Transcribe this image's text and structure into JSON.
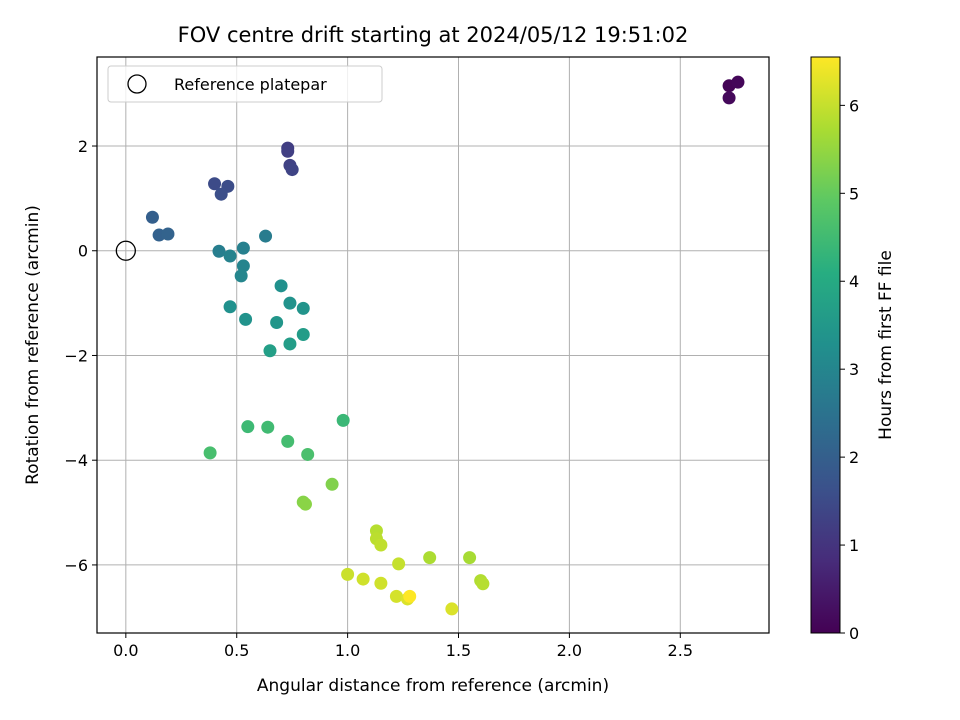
{
  "chart_data": {
    "type": "scatter",
    "title": "FOV centre drift starting at 2024/05/12 19:51:02",
    "xlabel": "Angular distance from reference (arcmin)",
    "ylabel": "Rotation from reference (arcmin)",
    "xlim": [
      -0.13,
      2.9
    ],
    "ylim": [
      -7.3,
      3.7
    ],
    "xticks": [
      0.0,
      0.5,
      1.0,
      1.5,
      2.0,
      2.5
    ],
    "xtick_labels": [
      "0.0",
      "0.5",
      "1.0",
      "1.5",
      "2.0",
      "2.5"
    ],
    "yticks": [
      2,
      0,
      -2,
      -4,
      -6
    ],
    "ytick_labels": [
      "2",
      "0",
      "−2",
      "−4",
      "−6"
    ],
    "grid": true,
    "legend": {
      "position": "top-left",
      "entries": [
        {
          "label": "Reference platepar",
          "marker": "open-circle",
          "x": 0.0,
          "y": 0.0
        }
      ]
    },
    "colorbar": {
      "label": "Hours from first FF file",
      "colormap": "viridis",
      "range": [
        0,
        6.55
      ],
      "ticks": [
        0,
        1,
        2,
        3,
        4,
        5,
        6
      ],
      "tick_labels": [
        "0",
        "1",
        "2",
        "3",
        "4",
        "5",
        "6"
      ]
    },
    "points": [
      {
        "x": 2.72,
        "y": 3.15,
        "hours": 0.05
      },
      {
        "x": 2.76,
        "y": 3.22,
        "hours": 0.1
      },
      {
        "x": 2.72,
        "y": 2.92,
        "hours": 0.15
      },
      {
        "x": 0.73,
        "y": 1.96,
        "hours": 1.2
      },
      {
        "x": 0.73,
        "y": 1.9,
        "hours": 1.25
      },
      {
        "x": 0.74,
        "y": 1.63,
        "hours": 1.3
      },
      {
        "x": 0.75,
        "y": 1.55,
        "hours": 1.35
      },
      {
        "x": 0.4,
        "y": 1.28,
        "hours": 1.5
      },
      {
        "x": 0.46,
        "y": 1.23,
        "hours": 1.55
      },
      {
        "x": 0.43,
        "y": 1.08,
        "hours": 1.6
      },
      {
        "x": 0.12,
        "y": 0.64,
        "hours": 2.0
      },
      {
        "x": 0.15,
        "y": 0.3,
        "hours": 2.05
      },
      {
        "x": 0.19,
        "y": 0.32,
        "hours": 2.1
      },
      {
        "x": 0.63,
        "y": 0.28,
        "hours": 2.75
      },
      {
        "x": 0.42,
        "y": -0.01,
        "hours": 2.8
      },
      {
        "x": 0.53,
        "y": 0.05,
        "hours": 2.85
      },
      {
        "x": 0.47,
        "y": -0.1,
        "hours": 2.9
      },
      {
        "x": 0.53,
        "y": -0.29,
        "hours": 2.95
      },
      {
        "x": 0.52,
        "y": -0.48,
        "hours": 3.0
      },
      {
        "x": 0.7,
        "y": -0.67,
        "hours": 3.3
      },
      {
        "x": 0.74,
        "y": -1.0,
        "hours": 3.35
      },
      {
        "x": 0.8,
        "y": -1.1,
        "hours": 3.4
      },
      {
        "x": 0.47,
        "y": -1.07,
        "hours": 3.3
      },
      {
        "x": 0.54,
        "y": -1.31,
        "hours": 3.35
      },
      {
        "x": 0.68,
        "y": -1.37,
        "hours": 3.45
      },
      {
        "x": 0.8,
        "y": -1.6,
        "hours": 3.6
      },
      {
        "x": 0.74,
        "y": -1.78,
        "hours": 3.65
      },
      {
        "x": 0.65,
        "y": -1.91,
        "hours": 3.7
      },
      {
        "x": 0.98,
        "y": -3.24,
        "hours": 4.4
      },
      {
        "x": 0.55,
        "y": -3.36,
        "hours": 4.45
      },
      {
        "x": 0.64,
        "y": -3.37,
        "hours": 4.5
      },
      {
        "x": 0.73,
        "y": -3.64,
        "hours": 4.55
      },
      {
        "x": 0.38,
        "y": -3.86,
        "hours": 4.6
      },
      {
        "x": 0.82,
        "y": -3.89,
        "hours": 4.65
      },
      {
        "x": 0.93,
        "y": -4.46,
        "hours": 5.3
      },
      {
        "x": 0.8,
        "y": -4.8,
        "hours": 5.35
      },
      {
        "x": 0.81,
        "y": -4.84,
        "hours": 5.4
      },
      {
        "x": 1.13,
        "y": -5.35,
        "hours": 5.85
      },
      {
        "x": 1.13,
        "y": -5.5,
        "hours": 5.9
      },
      {
        "x": 1.15,
        "y": -5.62,
        "hours": 5.95
      },
      {
        "x": 1.23,
        "y": -5.98,
        "hours": 6.0
      },
      {
        "x": 1.37,
        "y": -5.86,
        "hours": 5.75
      },
      {
        "x": 1.55,
        "y": -5.86,
        "hours": 5.7
      },
      {
        "x": 1.0,
        "y": -6.18,
        "hours": 6.05
      },
      {
        "x": 1.07,
        "y": -6.27,
        "hours": 6.1
      },
      {
        "x": 1.15,
        "y": -6.35,
        "hours": 6.1
      },
      {
        "x": 1.6,
        "y": -6.3,
        "hours": 5.8
      },
      {
        "x": 1.61,
        "y": -6.36,
        "hours": 5.85
      },
      {
        "x": 1.22,
        "y": -6.6,
        "hours": 6.15
      },
      {
        "x": 1.27,
        "y": -6.65,
        "hours": 6.2
      },
      {
        "x": 1.28,
        "y": -6.6,
        "hours": 6.55
      },
      {
        "x": 1.47,
        "y": -6.84,
        "hours": 6.2
      }
    ]
  }
}
